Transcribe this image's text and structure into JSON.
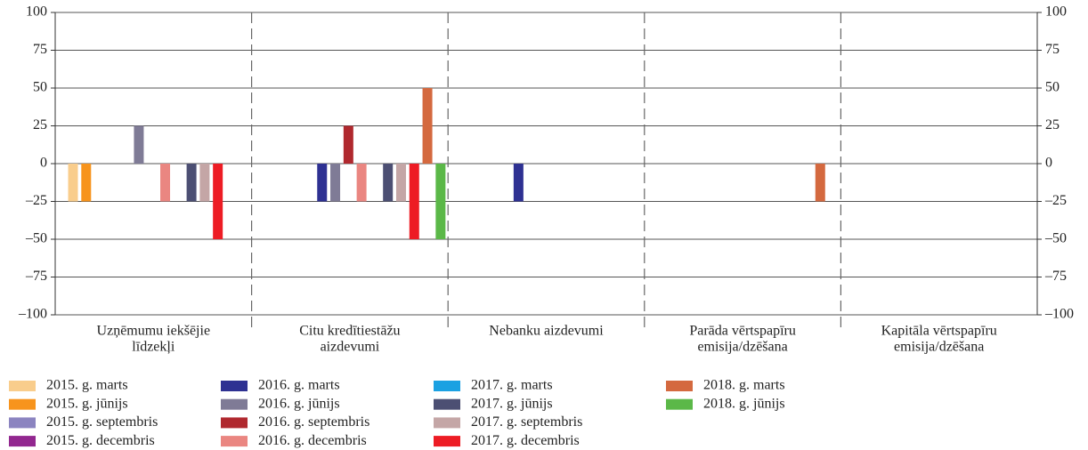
{
  "chart_data": {
    "type": "bar",
    "categories": [
      [
        "Uzņēmumu iekšējie",
        "līdzekļi"
      ],
      [
        "Citu kredītiestāžu",
        "aizdevumi"
      ],
      [
        "Nebanku aizdevumi"
      ],
      [
        "Parāda vērtspapīru",
        "emisija/dzēšana"
      ],
      [
        "Kapitāla vērtspapīru",
        "emisija/dzēšana"
      ]
    ],
    "series": [
      {
        "name": "2015. g. marts",
        "color": "#f9cd8c",
        "values": [
          -25,
          0,
          0,
          0,
          0
        ]
      },
      {
        "name": "2015. g. jūnijs",
        "color": "#f7941d",
        "values": [
          -25,
          0,
          0,
          0,
          0
        ]
      },
      {
        "name": "2015. g. septembris",
        "color": "#8b84c0",
        "values": [
          0,
          0,
          0,
          0,
          0
        ]
      },
      {
        "name": "2015. g. decembris",
        "color": "#92278f",
        "values": [
          0,
          0,
          0,
          0,
          0
        ]
      },
      {
        "name": "2016. g. marts",
        "color": "#2e3192",
        "values": [
          0,
          -25,
          -25,
          0,
          0
        ]
      },
      {
        "name": "2016. g. jūnijs",
        "color": "#7f7b96",
        "values": [
          25,
          -25,
          0,
          0,
          0
        ]
      },
      {
        "name": "2016. g. septembris",
        "color": "#b0282e",
        "values": [
          0,
          25,
          0,
          0,
          0
        ]
      },
      {
        "name": "2016. g. decembris",
        "color": "#ea8681",
        "values": [
          -25,
          -25,
          0,
          0,
          0
        ]
      },
      {
        "name": "2017. g. marts",
        "color": "#1ba1e2",
        "values": [
          0,
          0,
          0,
          0,
          0
        ]
      },
      {
        "name": "2017. g. jūnijs",
        "color": "#4c4f73",
        "values": [
          -25,
          -25,
          0,
          0,
          0
        ]
      },
      {
        "name": "2017. g. septembris",
        "color": "#c4a6a6",
        "values": [
          -25,
          -25,
          0,
          0,
          0
        ]
      },
      {
        "name": "2017. g. decembris",
        "color": "#ed1c24",
        "values": [
          -50,
          -50,
          0,
          0,
          0
        ]
      },
      {
        "name": "2018. g. marts",
        "color": "#d4693f",
        "values": [
          0,
          50,
          0,
          -25,
          0
        ]
      },
      {
        "name": "2018. g. jūnijs",
        "color": "#5bb848",
        "values": [
          0,
          -50,
          0,
          0,
          0
        ]
      }
    ],
    "ylim": [
      -100,
      100
    ],
    "yticks": [
      {
        "value": -100,
        "label": "–100"
      },
      {
        "value": -75,
        "label": "–75"
      },
      {
        "value": -50,
        "label": "–50"
      },
      {
        "value": -25,
        "label": "–25"
      },
      0,
      25,
      50,
      75,
      100
    ],
    "grid": true
  }
}
